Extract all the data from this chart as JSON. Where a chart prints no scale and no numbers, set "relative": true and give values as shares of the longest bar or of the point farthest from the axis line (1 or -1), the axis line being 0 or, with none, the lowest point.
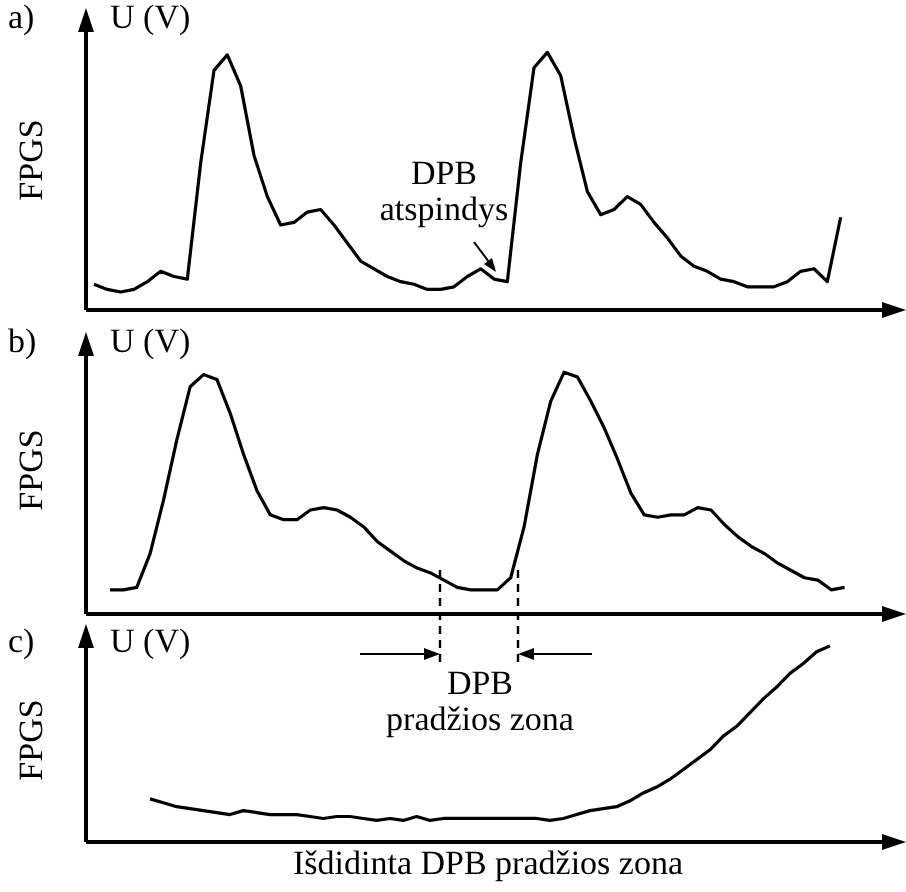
{
  "chart_data": [
    {
      "type": "line",
      "title": "a)",
      "ylabel": "FPGS",
      "annotations": [
        "U (V)",
        "DPB atspindys"
      ],
      "relative": true,
      "marker": "none",
      "color": "#000000",
      "categories": [
        null,
        null,
        null,
        null,
        null,
        null,
        null,
        null,
        null,
        null,
        null,
        null,
        null,
        null,
        null,
        null,
        null,
        null,
        null,
        null,
        null,
        null,
        null,
        null,
        null,
        null,
        null,
        null,
        null,
        null,
        null,
        null,
        null,
        null,
        null,
        null,
        null,
        null,
        null,
        null,
        null,
        null,
        null,
        null,
        null,
        null,
        null,
        null,
        null,
        null,
        null,
        null,
        null,
        null,
        null,
        null,
        null
      ],
      "values": [
        0.1,
        0.08,
        0.07,
        0.08,
        0.11,
        0.15,
        0.13,
        0.12,
        0.57,
        0.93,
        0.99,
        0.87,
        0.6,
        0.44,
        0.33,
        0.34,
        0.38,
        0.39,
        0.33,
        0.26,
        0.19,
        0.16,
        0.13,
        0.11,
        0.1,
        0.08,
        0.08,
        0.09,
        0.13,
        0.16,
        0.12,
        0.11,
        0.57,
        0.94,
        1.0,
        0.91,
        0.67,
        0.46,
        0.37,
        0.39,
        0.44,
        0.41,
        0.34,
        0.28,
        0.21,
        0.17,
        0.15,
        0.12,
        0.11,
        0.09,
        0.09,
        0.09,
        0.11,
        0.15,
        0.16,
        0.11,
        0.36
      ]
    },
    {
      "type": "line",
      "title": "b)",
      "ylabel": "FPGS",
      "annotations": [
        "U (V)",
        "DPB pradžios zona"
      ],
      "relative": true,
      "marker": "none",
      "color": "#000000",
      "categories": [
        null,
        null,
        null,
        null,
        null,
        null,
        null,
        null,
        null,
        null,
        null,
        null,
        null,
        null,
        null,
        null,
        null,
        null,
        null,
        null,
        null,
        null,
        null,
        null,
        null,
        null,
        null,
        null,
        null,
        null,
        null,
        null,
        null,
        null,
        null,
        null,
        null,
        null,
        null,
        null,
        null,
        null,
        null,
        null,
        null,
        null,
        null,
        null,
        null,
        null,
        null,
        null,
        null,
        null,
        null,
        null
      ],
      "values": [
        0.1,
        0.1,
        0.11,
        0.25,
        0.47,
        0.72,
        0.94,
        0.99,
        0.97,
        0.83,
        0.66,
        0.51,
        0.41,
        0.39,
        0.39,
        0.43,
        0.44,
        0.43,
        0.4,
        0.36,
        0.3,
        0.26,
        0.22,
        0.19,
        0.17,
        0.14,
        0.11,
        0.1,
        0.1,
        0.1,
        0.15,
        0.36,
        0.66,
        0.88,
        1.0,
        0.98,
        0.88,
        0.77,
        0.64,
        0.5,
        0.41,
        0.4,
        0.41,
        0.41,
        0.44,
        0.43,
        0.37,
        0.32,
        0.28,
        0.25,
        0.21,
        0.18,
        0.15,
        0.14,
        0.1,
        0.11
      ]
    },
    {
      "type": "line",
      "title": "c)",
      "ylabel": "FPGS",
      "xlabel": "Išdidinta DPB pradžios zona",
      "annotations": [
        "U (V)"
      ],
      "relative": true,
      "marker": "none",
      "color": "#000000",
      "categories": [
        null,
        null,
        null,
        null,
        null,
        null,
        null,
        null,
        null,
        null,
        null,
        null,
        null,
        null,
        null,
        null,
        null,
        null,
        null,
        null,
        null,
        null,
        null,
        null,
        null,
        null,
        null,
        null,
        null,
        null,
        null,
        null,
        null,
        null,
        null,
        null,
        null,
        null,
        null,
        null,
        null,
        null,
        null,
        null,
        null,
        null,
        null,
        null,
        null,
        null,
        null,
        null
      ],
      "values": [
        0.22,
        0.2,
        0.18,
        0.17,
        0.16,
        0.15,
        0.14,
        0.16,
        0.15,
        0.14,
        0.14,
        0.14,
        0.13,
        0.12,
        0.13,
        0.13,
        0.12,
        0.11,
        0.12,
        0.11,
        0.13,
        0.11,
        0.12,
        0.12,
        0.12,
        0.12,
        0.12,
        0.12,
        0.12,
        0.12,
        0.11,
        0.12,
        0.14,
        0.16,
        0.17,
        0.18,
        0.21,
        0.25,
        0.28,
        0.32,
        0.37,
        0.42,
        0.47,
        0.54,
        0.59,
        0.66,
        0.73,
        0.79,
        0.86,
        0.91,
        0.97,
        1.0
      ]
    }
  ]
}
